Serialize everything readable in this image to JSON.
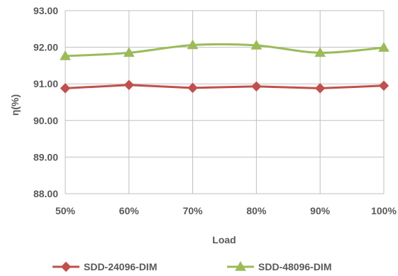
{
  "chart_data": {
    "type": "line",
    "title": "",
    "xlabel": "Load",
    "ylabel": "η(%)",
    "categories": [
      "50%",
      "60%",
      "70%",
      "80%",
      "90%",
      "100%"
    ],
    "ylim": [
      88.0,
      93.0
    ],
    "yticks": [
      "88.00",
      "89.00",
      "90.00",
      "91.00",
      "92.00",
      "93.00"
    ],
    "ytick_values": [
      88,
      89,
      90,
      91,
      92,
      93
    ],
    "grid": true,
    "legend_position": "bottom",
    "series": [
      {
        "name": "SDD-24096-DIM",
        "values": [
          90.88,
          90.97,
          90.89,
          90.93,
          90.88,
          90.95
        ],
        "color": "#c0504d",
        "marker": "diamond",
        "smooth": false
      },
      {
        "name": "SDD-48096-DIM",
        "values": [
          91.76,
          91.85,
          92.06,
          92.05,
          91.85,
          91.99
        ],
        "color": "#9bbb59",
        "marker": "triangle",
        "smooth": true
      }
    ]
  }
}
